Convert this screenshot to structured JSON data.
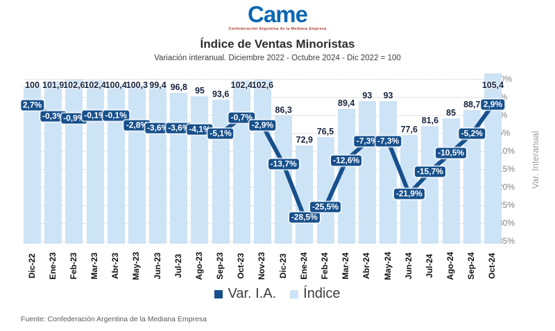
{
  "logo": {
    "brand": "Came",
    "caption": "Confederación Argentina de la Mediana Empresa"
  },
  "chart_data": {
    "type": "combo-bar-line",
    "title": "Índice de Ventas Minoristas",
    "subtitle": "Variación interanual. Diciembre 2022 - Octubre 2024 - Dic 2022 = 100",
    "categories": [
      "Dic-22",
      "Ene-23",
      "Feb-23",
      "Mar-23",
      "Abr-23",
      "May-23",
      "Jun-23",
      "Jul-23",
      "Ago-23",
      "Sep-23",
      "Oct-23",
      "Nov-23",
      "Dic-23",
      "Ene-24",
      "Feb-24",
      "Mar-24",
      "Abr-24",
      "May-24",
      "Jun-24",
      "Jul-24",
      "Ago-24",
      "Sep-24",
      "Oct-24"
    ],
    "series": [
      {
        "name": "Var. I.A.",
        "type": "line",
        "unit": "%",
        "color": "#17508c",
        "values": [
          2.7,
          -0.3,
          -0.9,
          -0.1,
          -0.1,
          -2.8,
          -3.6,
          -3.6,
          -4.1,
          -5.1,
          -0.7,
          -2.9,
          -13.7,
          -28.5,
          -25.5,
          -12.6,
          -7.3,
          -7.3,
          -21.9,
          -15.7,
          -10.5,
          -5.2,
          2.9
        ],
        "labels": [
          "2,7%",
          "-0,3%",
          "-0,9%",
          "-0,1%",
          "-0,1%",
          "-2,8%",
          "-3,6%",
          "-3,6%",
          "-4,1%",
          "-5,1%",
          "-0,7%",
          "-2,9%",
          "-13,7%",
          "-28,5%",
          "-25,5%",
          "-12,6%",
          "-7,3%",
          "-7,3%",
          "-21,9%",
          "-15,7%",
          "-10,5%",
          "-5,2%",
          "2,9%"
        ]
      },
      {
        "name": "Índice",
        "type": "bar",
        "color": "#cde3f6",
        "values": [
          100,
          101.9,
          102.6,
          102.4,
          100.4,
          100.3,
          99.4,
          96.8,
          95,
          93.6,
          102.4,
          102.6,
          86.3,
          72.9,
          76.5,
          89.4,
          93,
          93,
          77.6,
          81.6,
          85,
          88.7,
          105.4
        ],
        "labels": [
          "100",
          "101,9",
          "102,6",
          "102,4",
          "100,4",
          "100,3",
          "99,4",
          "96,8",
          "95",
          "93,6",
          "102,4",
          "102,6",
          "86,3",
          "72,9",
          "76,5",
          "89,4",
          "93",
          "93",
          "77,6",
          "81,6",
          "85",
          "88,7",
          "105,4"
        ]
      }
    ],
    "right_axis": {
      "label": "Var. Interanual",
      "min": -35,
      "max": 10,
      "tick_step": 5,
      "ticks": [
        "10%",
        "5%",
        "0%",
        "-5%",
        "-10%",
        "-15%",
        "-20%",
        "-25%",
        "-30%",
        "-35%"
      ]
    },
    "left_axis_hidden": true,
    "grid": "horizontal-dotted",
    "legend_position": "bottom"
  },
  "footer": {
    "source": "Fuente: Confederación Argentina de la Mediana Empresa"
  }
}
